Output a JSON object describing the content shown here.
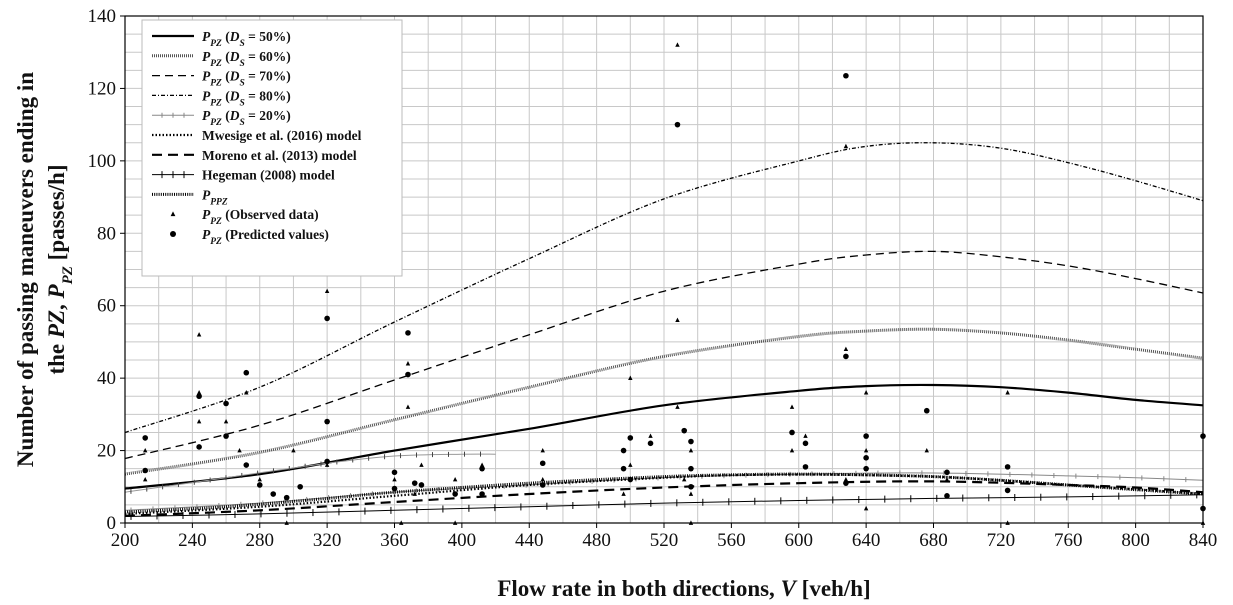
{
  "chart_data": {
    "type": "line",
    "xlabel_parts": [
      "Flow rate in both directions, ",
      "V",
      " [veh/h]"
    ],
    "ylabel_line1": "Number of passing maneuvers ending in",
    "ylabel_line2_parts": [
      "the ",
      "PZ",
      ", ",
      "P",
      "PZ",
      " [passes/h]"
    ],
    "xlim": [
      200,
      840
    ],
    "ylim": [
      0,
      140
    ],
    "xticks": [
      200,
      240,
      280,
      320,
      360,
      400,
      440,
      480,
      520,
      560,
      600,
      640,
      680,
      720,
      760,
      800,
      840
    ],
    "yticks": [
      0,
      20,
      40,
      60,
      80,
      100,
      120,
      140
    ],
    "grid": true,
    "legend_position": "top-left",
    "series": [
      {
        "name": "P_PZ (D_S = 50%)",
        "legend": {
          "pre": "P",
          "sub": "PZ",
          "mid": " (",
          "it": "D",
          "sub2": "S",
          "post": " = 50%)"
        },
        "style": "solid",
        "color": "#000000",
        "width": 2.2,
        "dash": "",
        "marker": "none",
        "points": [
          [
            200,
            9.5
          ],
          [
            280,
            13.5
          ],
          [
            360,
            20
          ],
          [
            440,
            26
          ],
          [
            520,
            32.5
          ],
          [
            600,
            36.5
          ],
          [
            640,
            37.8
          ],
          [
            680,
            38.1
          ],
          [
            720,
            37.5
          ],
          [
            760,
            36
          ],
          [
            800,
            34
          ],
          [
            840,
            32.5
          ]
        ]
      },
      {
        "name": "P_PZ (D_S = 60%)",
        "legend": {
          "pre": "P",
          "sub": "PZ",
          "mid": " (",
          "it": "D",
          "sub2": "S",
          "post": " = 60%)"
        },
        "style": "hatched",
        "color": "#555555",
        "width": 3,
        "dash": "1 1",
        "marker": "none",
        "points": [
          [
            200,
            13.5
          ],
          [
            280,
            19.5
          ],
          [
            360,
            28.5
          ],
          [
            440,
            37.5
          ],
          [
            520,
            46
          ],
          [
            600,
            51.5
          ],
          [
            640,
            53
          ],
          [
            680,
            53.5
          ],
          [
            720,
            52.5
          ],
          [
            760,
            50.5
          ],
          [
            800,
            48
          ],
          [
            840,
            45.5
          ]
        ]
      },
      {
        "name": "P_PZ (D_S = 70%)",
        "legend": {
          "pre": "P",
          "sub": "PZ",
          "mid": " (",
          "it": "D",
          "sub2": "S",
          "post": " = 70%)"
        },
        "style": "dashed",
        "color": "#000000",
        "width": 1.3,
        "dash": "8 5",
        "marker": "none",
        "points": [
          [
            200,
            17.8
          ],
          [
            280,
            27
          ],
          [
            360,
            39.5
          ],
          [
            440,
            52
          ],
          [
            520,
            64
          ],
          [
            600,
            71.5
          ],
          [
            640,
            74
          ],
          [
            680,
            75
          ],
          [
            720,
            73.5
          ],
          [
            760,
            71
          ],
          [
            800,
            67.5
          ],
          [
            840,
            63.5
          ]
        ]
      },
      {
        "name": "P_PZ (D_S = 80%)",
        "legend": {
          "pre": "P",
          "sub": "PZ",
          "mid": " (",
          "it": "D",
          "sub2": "S",
          "post": " = 80%)"
        },
        "style": "dash-dot",
        "color": "#000000",
        "width": 1.3,
        "dash": "4 2 1 2",
        "marker": "none",
        "points": [
          [
            200,
            25
          ],
          [
            280,
            37.5
          ],
          [
            360,
            55.5
          ],
          [
            440,
            73
          ],
          [
            520,
            89.5
          ],
          [
            600,
            100
          ],
          [
            640,
            104
          ],
          [
            680,
            105
          ],
          [
            720,
            103.5
          ],
          [
            760,
            99.5
          ],
          [
            800,
            94.5
          ],
          [
            840,
            89
          ]
        ]
      },
      {
        "name": "P_PZ (D_S = 20%)",
        "legend": {
          "pre": "P",
          "sub": "PZ",
          "mid": " (",
          "it": "D",
          "sub2": "S",
          "post": " = 20%)"
        },
        "style": "thin-ticked",
        "color": "#888888",
        "width": 1,
        "dash": "",
        "marker": "tick",
        "points": [
          [
            200,
            3.5
          ],
          [
            280,
            5.5
          ],
          [
            360,
            8.5
          ],
          [
            440,
            10.5
          ],
          [
            520,
            12.5
          ],
          [
            600,
            13.5
          ],
          [
            680,
            13.8
          ],
          [
            760,
            13
          ],
          [
            800,
            12.5
          ],
          [
            840,
            11.8
          ]
        ]
      },
      {
        "name": "Mwesige et al. (2016) model",
        "legend": {
          "pre": "Mwesige et al. (2016) model"
        },
        "style": "dotted-heavy",
        "color": "#000000",
        "width": 2.2,
        "dash": "1.5 2",
        "marker": "none",
        "points": [
          [
            200,
            2.5
          ],
          [
            280,
            4.5
          ],
          [
            360,
            7.5
          ],
          [
            440,
            10.5
          ],
          [
            520,
            12.5
          ],
          [
            560,
            13.2
          ],
          [
            600,
            13.4
          ],
          [
            640,
            13.2
          ],
          [
            680,
            12.8
          ],
          [
            720,
            11.8
          ],
          [
            760,
            10.5
          ],
          [
            800,
            9.3
          ],
          [
            840,
            8
          ]
        ]
      },
      {
        "name": "Moreno et al. (2013) model",
        "legend": {
          "pre": "Moreno et al. (2013) model"
        },
        "style": "dashed-heavy",
        "color": "#000000",
        "width": 2.2,
        "dash": "10 6",
        "marker": "none",
        "points": [
          [
            200,
            2
          ],
          [
            280,
            3.5
          ],
          [
            360,
            5.8
          ],
          [
            440,
            8
          ],
          [
            520,
            9.8
          ],
          [
            600,
            11
          ],
          [
            680,
            11.5
          ],
          [
            760,
            10.5
          ],
          [
            800,
            9.8
          ],
          [
            840,
            8.5
          ]
        ]
      },
      {
        "name": "Hegeman (2008) model",
        "legend": {
          "pre": "Hegeman (2008) model"
        },
        "style": "solid-ticked",
        "color": "#000000",
        "width": 1,
        "dash": "",
        "marker": "cross",
        "points": [
          [
            200,
            1.8
          ],
          [
            280,
            2.5
          ],
          [
            360,
            3.5
          ],
          [
            440,
            4.5
          ],
          [
            520,
            5.5
          ],
          [
            600,
            6.2
          ],
          [
            680,
            6.8
          ],
          [
            760,
            7.2
          ],
          [
            840,
            7.8
          ]
        ]
      },
      {
        "name": "P_PPZ",
        "legend": {
          "pre": "P",
          "sub": "PPZ"
        },
        "style": "dotted-dense",
        "color": "#000000",
        "width": 3,
        "dash": "1 1.2",
        "marker": "none",
        "points": [
          [
            200,
            3
          ],
          [
            260,
            4.5
          ],
          [
            320,
            6.8
          ],
          [
            360,
            8.5
          ],
          [
            440,
            11
          ],
          [
            520,
            12.8
          ],
          [
            560,
            13.3
          ],
          [
            600,
            13.5
          ],
          [
            640,
            13.3
          ],
          [
            680,
            12.8
          ],
          [
            720,
            11.8
          ],
          [
            760,
            10.5
          ],
          [
            800,
            9.2
          ],
          [
            840,
            8
          ]
        ]
      }
    ],
    "extra_segments": [
      {
        "series_ref": "P_PZ (D_S = 20%)",
        "style": "thin-ticked",
        "color": "#999999",
        "width": 1,
        "points": [
          [
            200,
            8.5
          ],
          [
            260,
            12.5
          ],
          [
            320,
            16.5
          ],
          [
            360,
            18.5
          ],
          [
            400,
            19
          ],
          [
            420,
            19
          ]
        ]
      }
    ],
    "scatter": [
      {
        "name": "P_PZ (Observed data)",
        "legend": {
          "pre": "P",
          "sub": "PZ",
          "mid": " (Observed data)"
        },
        "marker": "triangle",
        "points": [
          [
            212,
            20
          ],
          [
            212,
            12
          ],
          [
            244,
            52
          ],
          [
            244,
            36
          ],
          [
            244,
            28
          ],
          [
            260,
            28
          ],
          [
            268,
            20
          ],
          [
            272,
            36
          ],
          [
            280,
            12
          ],
          [
            288,
            8
          ],
          [
            296,
            0
          ],
          [
            300,
            20
          ],
          [
            320,
            64
          ],
          [
            320,
            16
          ],
          [
            360,
            12
          ],
          [
            364,
            0
          ],
          [
            368,
            32
          ],
          [
            368,
            44
          ],
          [
            372,
            8
          ],
          [
            376,
            16
          ],
          [
            396,
            0
          ],
          [
            396,
            12
          ],
          [
            412,
            16
          ],
          [
            412,
            8
          ],
          [
            448,
            20
          ],
          [
            448,
            12
          ],
          [
            496,
            20
          ],
          [
            496,
            8
          ],
          [
            500,
            40
          ],
          [
            500,
            16
          ],
          [
            512,
            24
          ],
          [
            528,
            132
          ],
          [
            528,
            56
          ],
          [
            528,
            32
          ],
          [
            532,
            12
          ],
          [
            536,
            8
          ],
          [
            536,
            0
          ],
          [
            536,
            20
          ],
          [
            596,
            32
          ],
          [
            596,
            20
          ],
          [
            604,
            24
          ],
          [
            628,
            48
          ],
          [
            628,
            104
          ],
          [
            628,
            12
          ],
          [
            640,
            36
          ],
          [
            640,
            20
          ],
          [
            640,
            4
          ],
          [
            676,
            20
          ],
          [
            688,
            12
          ],
          [
            724,
            36
          ],
          [
            724,
            0
          ],
          [
            840,
            0
          ]
        ]
      },
      {
        "name": "P_PZ (Predicted values)",
        "legend": {
          "pre": "P",
          "sub": "PZ",
          "mid": " (Predicted values)"
        },
        "marker": "circle",
        "points": [
          [
            212,
            23.5
          ],
          [
            212,
            14.5
          ],
          [
            244,
            35
          ],
          [
            244,
            21
          ],
          [
            260,
            33
          ],
          [
            260,
            24
          ],
          [
            272,
            41.5
          ],
          [
            272,
            16
          ],
          [
            280,
            10.5
          ],
          [
            288,
            8
          ],
          [
            296,
            7
          ],
          [
            304,
            10
          ],
          [
            320,
            56.5
          ],
          [
            320,
            28
          ],
          [
            320,
            17
          ],
          [
            360,
            14
          ],
          [
            360,
            9.5
          ],
          [
            368,
            52.5
          ],
          [
            368,
            41
          ],
          [
            372,
            11
          ],
          [
            376,
            10.5
          ],
          [
            396,
            8
          ],
          [
            412,
            15
          ],
          [
            412,
            8
          ],
          [
            448,
            16.5
          ],
          [
            448,
            10.5
          ],
          [
            496,
            20
          ],
          [
            496,
            15
          ],
          [
            500,
            23.5
          ],
          [
            500,
            12
          ],
          [
            512,
            22
          ],
          [
            528,
            110
          ],
          [
            532,
            25.5
          ],
          [
            536,
            22.5
          ],
          [
            536,
            15
          ],
          [
            536,
            10
          ],
          [
            596,
            25
          ],
          [
            604,
            22
          ],
          [
            604,
            15.5
          ],
          [
            628,
            46
          ],
          [
            628,
            11
          ],
          [
            628,
            123.5
          ],
          [
            640,
            24
          ],
          [
            640,
            18
          ],
          [
            640,
            15
          ],
          [
            676,
            31
          ],
          [
            688,
            14
          ],
          [
            688,
            7.5
          ],
          [
            724,
            15.5
          ],
          [
            724,
            9
          ],
          [
            840,
            24
          ],
          [
            840,
            4
          ]
        ]
      }
    ]
  }
}
